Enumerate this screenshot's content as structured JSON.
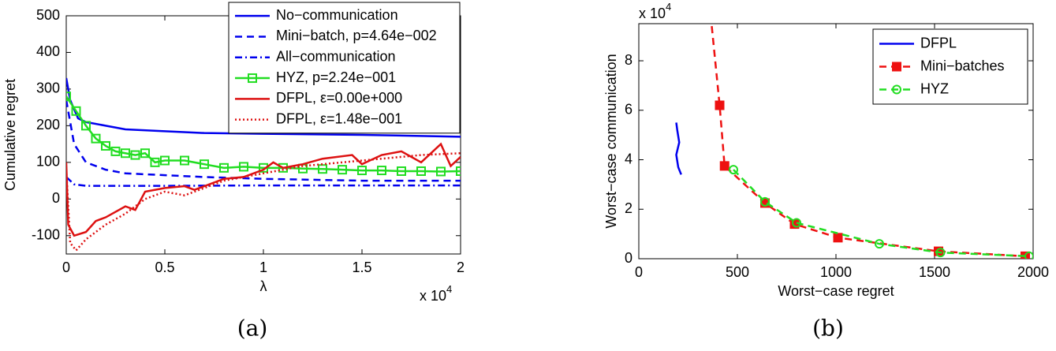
{
  "chart_data": [
    {
      "type": "line",
      "caption": "(a)",
      "xlabel": "λ",
      "ylabel": "Cumulative regret",
      "x_scale_base": "x 10",
      "x_scale_exponent": "4",
      "xlim": [
        0,
        2
      ],
      "ylim": [
        -150,
        500
      ],
      "xticks": [
        0,
        0.5,
        1,
        1.5,
        2
      ],
      "yticks": [
        -100,
        0,
        100,
        200,
        300,
        400,
        500
      ],
      "legend": "upper right",
      "series": [
        {
          "name": "No−communication",
          "color": "#0000ee",
          "linestyle": "solid",
          "marker": "none",
          "x": [
            0,
            0.02,
            0.06,
            0.1,
            0.2,
            0.3,
            0.5,
            0.7,
            1,
            1.5,
            2
          ],
          "values": [
            330,
            270,
            220,
            210,
            200,
            190,
            185,
            180,
            178,
            175,
            170
          ]
        },
        {
          "name": "Mini−batch, p=4.64e−002",
          "color": "#0000ee",
          "linestyle": "dashed",
          "marker": "none",
          "x": [
            0,
            0.04,
            0.1,
            0.2,
            0.3,
            0.5,
            0.7,
            1,
            1.5,
            2
          ],
          "values": [
            270,
            150,
            100,
            80,
            70,
            65,
            60,
            55,
            50,
            50
          ]
        },
        {
          "name": "All−communication",
          "color": "#0000ee",
          "linestyle": "dashdot",
          "marker": "none",
          "x": [
            0,
            0.04,
            0.1,
            0.5,
            1,
            1.5,
            2
          ],
          "values": [
            60,
            40,
            36,
            36,
            37,
            37,
            37
          ]
        },
        {
          "name": "HYZ, p=2.24e−001",
          "color": "#22dd22",
          "linestyle": "solid",
          "marker": "square",
          "marker_fill": "none",
          "x": [
            0,
            0.05,
            0.1,
            0.15,
            0.2,
            0.25,
            0.3,
            0.35,
            0.4,
            0.45,
            0.5,
            0.6,
            0.7,
            0.8,
            0.9,
            1,
            1.1,
            1.2,
            1.3,
            1.4,
            1.5,
            1.6,
            1.7,
            1.8,
            1.9,
            2
          ],
          "values": [
            280,
            240,
            200,
            165,
            145,
            130,
            125,
            120,
            125,
            100,
            105,
            105,
            95,
            85,
            88,
            85,
            85,
            83,
            82,
            80,
            78,
            78,
            76,
            76,
            75,
            76
          ]
        },
        {
          "name": "DFPL, ε=0.00e+000",
          "color": "#dd1111",
          "linestyle": "solid",
          "marker": "none",
          "x": [
            0,
            0.01,
            0.04,
            0.1,
            0.15,
            0.2,
            0.3,
            0.35,
            0.4,
            0.5,
            0.6,
            0.65,
            0.8,
            0.9,
            1,
            1.05,
            1.1,
            1.2,
            1.3,
            1.45,
            1.5,
            1.6,
            1.7,
            1.8,
            1.9,
            1.95,
            2
          ],
          "values": [
            100,
            -70,
            -100,
            -90,
            -60,
            -50,
            -20,
            -30,
            20,
            30,
            35,
            25,
            55,
            60,
            80,
            100,
            85,
            95,
            110,
            120,
            95,
            120,
            130,
            100,
            150,
            90,
            115
          ]
        },
        {
          "name": "DFPL, ε=1.48e−001",
          "color": "#dd1111",
          "linestyle": "dotted",
          "marker": "none",
          "x": [
            0,
            0.02,
            0.05,
            0.1,
            0.2,
            0.3,
            0.4,
            0.5,
            0.6,
            0.7,
            0.8,
            1,
            1.2,
            1.4,
            1.6,
            1.8,
            2
          ],
          "values": [
            80,
            -120,
            -140,
            -110,
            -70,
            -40,
            0,
            20,
            10,
            30,
            50,
            70,
            90,
            100,
            110,
            120,
            125
          ]
        }
      ]
    },
    {
      "type": "line",
      "caption": "(b)",
      "xlabel": "Worst−case regret",
      "ylabel": "Worst−case communication",
      "y_scale_base": "x 10",
      "y_scale_exponent": "4",
      "xlim": [
        0,
        2000
      ],
      "ylim": [
        0,
        9.5
      ],
      "xticks": [
        0,
        500,
        1000,
        1500,
        2000
      ],
      "yticks": [
        0,
        2,
        4,
        6,
        8
      ],
      "legend": "upper right",
      "series": [
        {
          "name": "DFPL",
          "color": "#0000ee",
          "linestyle": "solid",
          "marker": "none",
          "x": [
            215,
            200,
            190,
            205,
            195,
            190
          ],
          "values": [
            3.4,
            3.7,
            4.2,
            4.7,
            5.2,
            5.5
          ]
        },
        {
          "name": "Mini−batches",
          "color": "#ee1111",
          "linestyle": "dashed",
          "marker": "square",
          "marker_fill": "filled",
          "x": [
            370,
            410,
            435,
            640,
            790,
            1010,
            1520,
            1960
          ],
          "values": [
            9.4,
            6.2,
            3.75,
            2.25,
            1.4,
            0.85,
            0.3,
            0.1
          ]
        },
        {
          "name": "HYZ",
          "color": "#22dd22",
          "linestyle": "dashed",
          "marker": "circle",
          "marker_fill": "none",
          "x": [
            480,
            640,
            800,
            1220,
            1530,
            1980
          ],
          "values": [
            3.6,
            2.3,
            1.45,
            0.6,
            0.25,
            0.1
          ]
        }
      ]
    }
  ]
}
